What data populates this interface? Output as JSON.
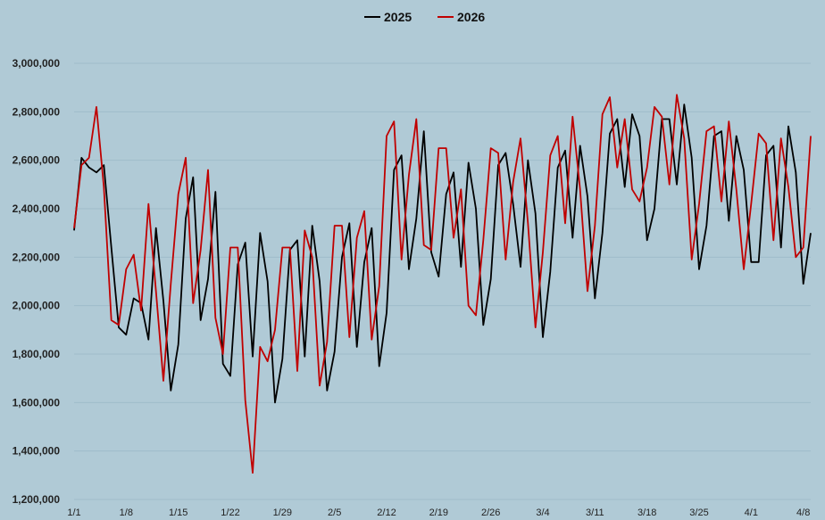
{
  "chart_data": {
    "type": "line",
    "title": "",
    "xlabel": "",
    "ylabel": "",
    "ylim": [
      1200000,
      3000000
    ],
    "y_ticks": [
      1200000,
      1400000,
      1600000,
      1800000,
      2000000,
      2200000,
      2400000,
      2600000,
      2800000,
      3000000
    ],
    "y_tick_labels": [
      "1,200,000",
      "1,400,000",
      "1,600,000",
      "1,800,000",
      "2,000,000",
      "2,200,000",
      "2,400,000",
      "2,600,000",
      "2,800,000",
      "3,000,000"
    ],
    "x_tick_labels": [
      "1/1",
      "1/8",
      "1/15",
      "1/22",
      "1/29",
      "2/5",
      "2/12",
      "2/19",
      "2/26",
      "3/4",
      "3/11",
      "3/18",
      "3/25",
      "4/1",
      "4/8"
    ],
    "x_tick_days": [
      0,
      7,
      14,
      21,
      28,
      35,
      42,
      49,
      56,
      63,
      70,
      77,
      84,
      91,
      98
    ],
    "x_days": [
      0,
      1,
      2,
      3,
      4,
      5,
      6,
      7,
      8,
      9,
      10,
      11,
      12,
      13,
      14,
      15,
      16,
      17,
      18,
      19,
      20,
      21,
      22,
      23,
      24,
      25,
      26,
      27,
      28,
      29,
      30,
      31,
      32,
      33,
      34,
      35,
      36,
      37,
      38,
      39,
      40,
      41,
      42,
      43,
      44,
      45,
      46,
      47,
      48,
      49,
      50,
      51,
      52,
      53,
      54,
      55,
      56,
      57,
      58,
      59,
      60,
      61,
      62,
      63,
      64,
      65,
      66,
      67,
      68,
      69,
      70,
      71,
      72,
      73,
      74,
      75,
      76,
      77,
      78,
      79,
      80,
      81,
      82,
      83,
      84,
      85,
      86,
      87,
      88,
      89,
      90,
      91,
      92,
      93,
      94,
      95,
      96,
      97,
      98,
      99
    ],
    "grid": "horizontal",
    "legend_position": "top-center",
    "series": [
      {
        "name": "2025",
        "color": "#000000",
        "values": [
          2310000,
          2610000,
          2570000,
          2550000,
          2580000,
          2240000,
          1910000,
          1880000,
          2030000,
          2010000,
          1860000,
          2320000,
          2020000,
          1650000,
          1840000,
          2360000,
          2530000,
          1940000,
          2110000,
          2470000,
          1760000,
          1710000,
          2170000,
          2260000,
          1790000,
          2300000,
          2100000,
          1600000,
          1780000,
          2230000,
          2270000,
          1790000,
          2330000,
          2100000,
          1650000,
          1810000,
          2200000,
          2340000,
          1830000,
          2180000,
          2320000,
          1750000,
          1970000,
          2560000,
          2620000,
          2150000,
          2360000,
          2720000,
          2220000,
          2120000,
          2460000,
          2550000,
          2160000,
          2590000,
          2400000,
          1920000,
          2110000,
          2580000,
          2630000,
          2420000,
          2160000,
          2600000,
          2380000,
          1870000,
          2140000,
          2570000,
          2640000,
          2280000,
          2660000,
          2450000,
          2030000,
          2300000,
          2710000,
          2770000,
          2490000,
          2790000,
          2700000,
          2270000,
          2400000,
          2770000,
          2770000,
          2500000,
          2830000,
          2610000,
          2150000,
          2330000,
          2700000,
          2720000,
          2350000,
          2700000,
          2560000,
          2180000,
          2180000,
          2620000,
          2660000,
          2240000,
          2740000,
          2550000,
          2090000,
          2300000
        ]
      },
      {
        "name": "2026",
        "color": "#c00000",
        "values": [
          2320000,
          2580000,
          2610000,
          2820000,
          2490000,
          1940000,
          1920000,
          2150000,
          2210000,
          1980000,
          2420000,
          2060000,
          1690000,
          2090000,
          2460000,
          2610000,
          2010000,
          2230000,
          2560000,
          1950000,
          1800000,
          2240000,
          2240000,
          1610000,
          1310000,
          1830000,
          1770000,
          1900000,
          2240000,
          2240000,
          1730000,
          2310000,
          2200000,
          1670000,
          1850000,
          2330000,
          2330000,
          1870000,
          2280000,
          2390000,
          1860000,
          2080000,
          2700000,
          2760000,
          2190000,
          2540000,
          2770000,
          2250000,
          2230000,
          2650000,
          2650000,
          2280000,
          2480000,
          2000000,
          1960000,
          2270000,
          2650000,
          2630000,
          2190000,
          2510000,
          2690000,
          2340000,
          1910000,
          2220000,
          2620000,
          2700000,
          2340000,
          2780000,
          2480000,
          2060000,
          2330000,
          2790000,
          2860000,
          2570000,
          2770000,
          2480000,
          2430000,
          2570000,
          2820000,
          2780000,
          2500000,
          2870000,
          2690000,
          2190000,
          2420000,
          2720000,
          2740000,
          2430000,
          2760000,
          2480000,
          2150000,
          2420000,
          2710000,
          2670000,
          2270000,
          2690000,
          2490000,
          2200000,
          2240000,
          2700000
        ]
      }
    ]
  }
}
